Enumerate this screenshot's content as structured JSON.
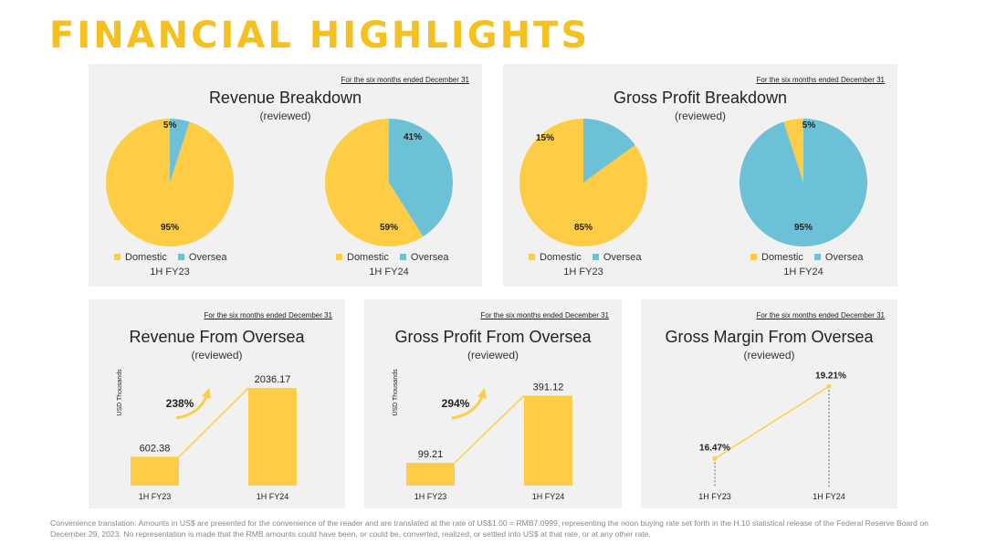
{
  "page_title": "FINANCIAL HIGHLIGHTS",
  "period_note": "For the six months ended December 31",
  "reviewed": "(reviewed)",
  "colors": {
    "domestic": "#ffcd45",
    "oversea": "#6dc1d7",
    "accent": "#f5c020"
  },
  "legend": {
    "domestic": "Domestic",
    "oversea": "Oversea"
  },
  "periods": {
    "a": "1H FY23",
    "b": "1H FY24"
  },
  "footnote": "Convenience translation: Amounts in US$ are presented for the convenience of the reader and are translated at the rate of US$1.00 = RMB7.0999, representing the noon buying rate set forth in the H.10 statistical release of the Federal Reserve Board on December 29, 2023. No representation is made that the RMB amounts could have been, or could be, converted, realized, or settled into US$ at that rate, or at any other rate.",
  "chart_data": [
    {
      "id": "revenue-breakdown",
      "type": "pie",
      "title": "Revenue Breakdown",
      "subtitle": "(reviewed)",
      "pies": [
        {
          "label": "1H FY23",
          "slices": [
            {
              "name": "Domestic",
              "value": 95,
              "text": "95%"
            },
            {
              "name": "Oversea",
              "value": 5,
              "text": "5%"
            }
          ]
        },
        {
          "label": "1H FY24",
          "slices": [
            {
              "name": "Domestic",
              "value": 59,
              "text": "59%"
            },
            {
              "name": "Oversea",
              "value": 41,
              "text": "41%"
            }
          ]
        }
      ]
    },
    {
      "id": "gross-profit-breakdown",
      "type": "pie",
      "title": "Gross Profit Breakdown",
      "subtitle": "(reviewed)",
      "pies": [
        {
          "label": "1H FY23",
          "slices": [
            {
              "name": "Domestic",
              "value": 85,
              "text": "85%"
            },
            {
              "name": "Oversea",
              "value": 15,
              "text": "15%"
            }
          ]
        },
        {
          "label": "1H FY24",
          "slices": [
            {
              "name": "Domestic",
              "value": 5,
              "text": "5%"
            },
            {
              "name": "Oversea",
              "value": 95,
              "text": "95%"
            }
          ]
        }
      ]
    },
    {
      "id": "revenue-from-oversea",
      "type": "bar",
      "title": "Revenue From Oversea",
      "subtitle": "(reviewed)",
      "ylabel": "USD Thousands",
      "categories": [
        "1H FY23",
        "1H FY24"
      ],
      "values": [
        602.38,
        2036.17
      ],
      "value_labels": [
        "602.38",
        "2036.17"
      ],
      "growth_label": "238%",
      "ylim": [
        0,
        2400
      ]
    },
    {
      "id": "gross-profit-from-oversea",
      "type": "bar",
      "title": "Gross Profit From Oversea",
      "subtitle": "(reviewed)",
      "ylabel": "USD Thousands",
      "categories": [
        "1H FY23",
        "1H FY24"
      ],
      "values": [
        99.21,
        391.12
      ],
      "value_labels": [
        "99.21",
        "391.12"
      ],
      "growth_label": "294%",
      "ylim": [
        0,
        500
      ]
    },
    {
      "id": "gross-margin-from-oversea",
      "type": "line",
      "title": "Gross Margin From Oversea",
      "subtitle": "(reviewed)",
      "categories": [
        "1H FY23",
        "1H FY24"
      ],
      "values": [
        16.47,
        19.21
      ],
      "value_labels": [
        "16.47%",
        "19.21%"
      ],
      "ylim": [
        16,
        19.6
      ]
    }
  ]
}
